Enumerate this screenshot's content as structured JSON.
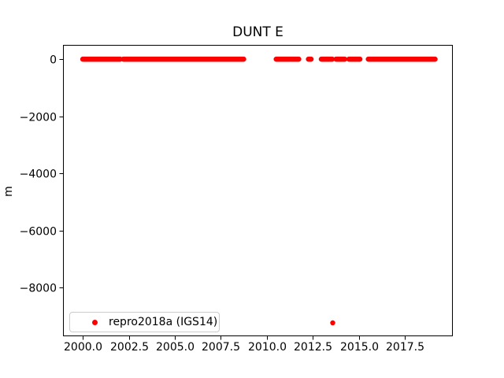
{
  "chart_data": {
    "type": "scatter",
    "title": "DUNT E",
    "xlabel": "",
    "ylabel": "m",
    "xlim": [
      1998.93,
      2020.09
    ],
    "ylim": [
      -9710,
      500
    ],
    "grid": false,
    "x_ticks": [
      2000.0,
      2002.5,
      2005.0,
      2007.5,
      2010.0,
      2012.5,
      2015.0,
      2017.5
    ],
    "x_tick_labels": [
      "2000.0",
      "2002.5",
      "2005.0",
      "2007.5",
      "2010.0",
      "2012.5",
      "2015.0",
      "2017.5"
    ],
    "y_ticks": [
      0,
      -2000,
      -4000,
      -6000,
      -8000
    ],
    "y_tick_labels": [
      "0",
      "−2000",
      "−4000",
      "−6000",
      "−8000"
    ],
    "axis_color": "#000000",
    "legend_position": "lower left",
    "series": [
      {
        "name": "repro2018a (IGS14)",
        "color": "#ff0000",
        "marker": "dot",
        "y_value": 0,
        "point_step_years": 0.03,
        "segments": [
          [
            2000.0,
            2002.05
          ],
          [
            2002.2,
            2008.75
          ],
          [
            2010.5,
            2011.75
          ],
          [
            2012.25,
            2012.4
          ],
          [
            2012.95,
            2013.55
          ],
          [
            2013.75,
            2014.25
          ],
          [
            2014.45,
            2015.05
          ],
          [
            2015.5,
            2019.15
          ]
        ],
        "outliers": [
          {
            "x": 2013.57,
            "y": -9240
          }
        ]
      }
    ]
  }
}
